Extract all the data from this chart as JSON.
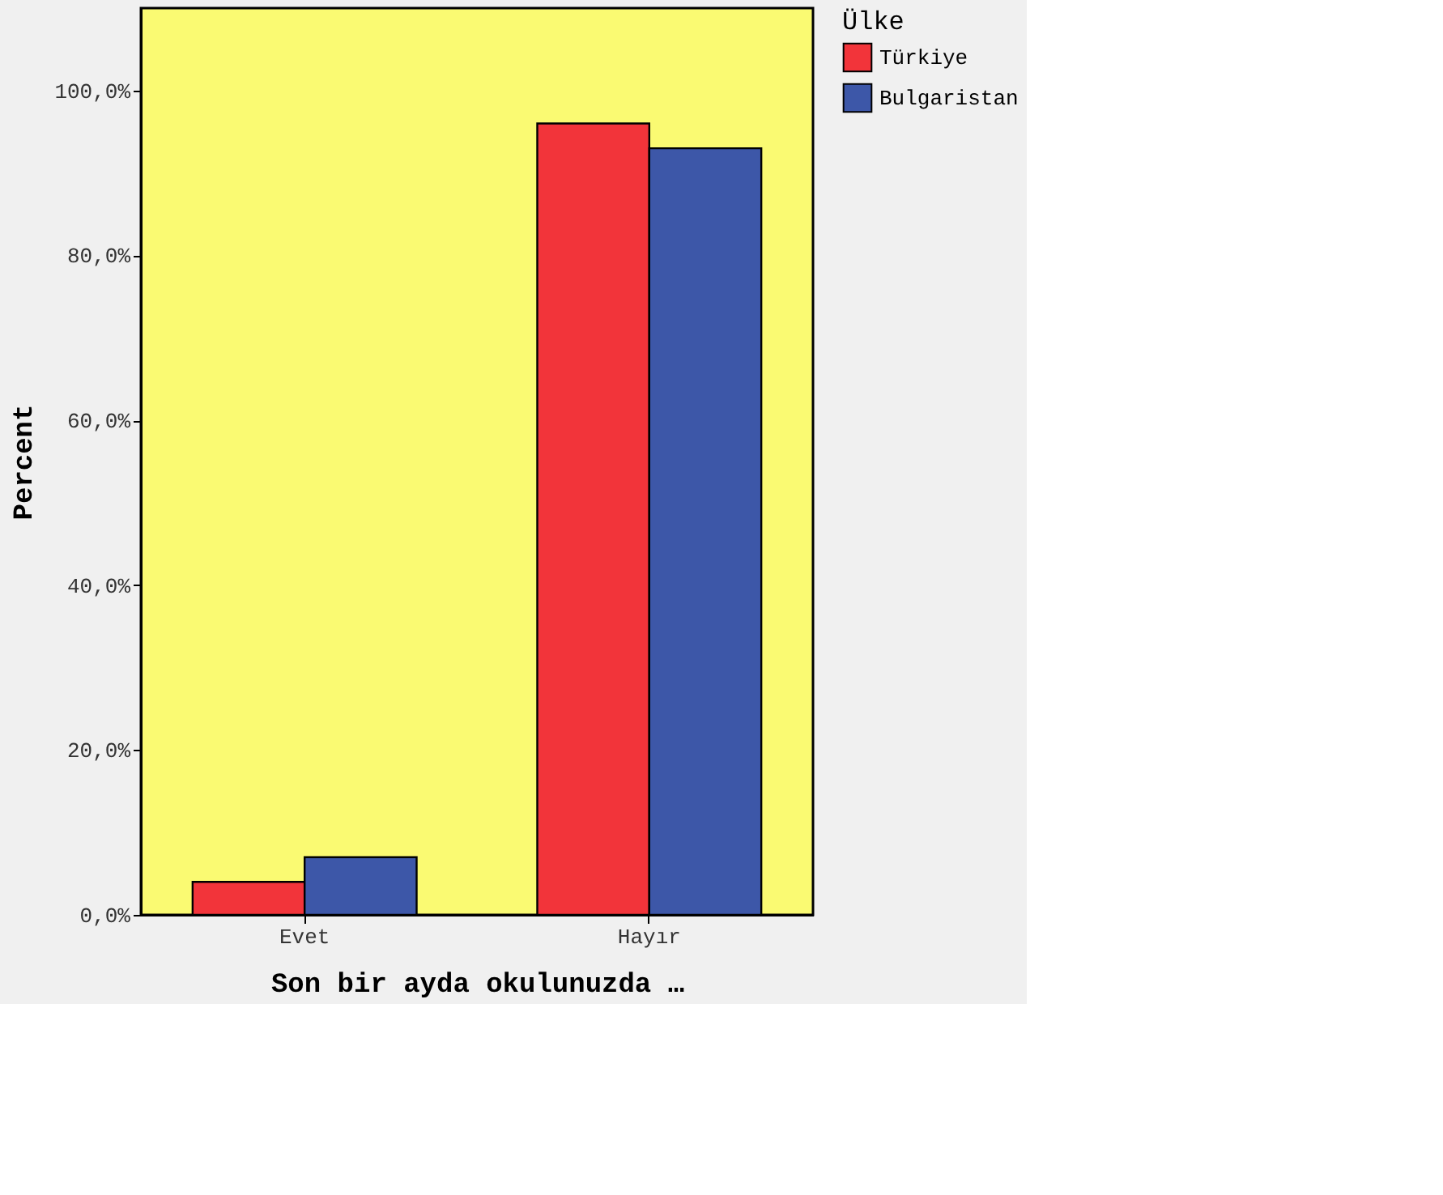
{
  "chart_data": {
    "type": "bar",
    "xlabel": "Son bir ayda okulunuzda …",
    "ylabel": "Percent",
    "legend_title": "Ülke",
    "legend": "top right",
    "grid": false,
    "categories": [
      "Evet",
      "Hayır"
    ],
    "series": [
      {
        "name": "Türkiye",
        "color": "#f2343a",
        "values": [
          4,
          96
        ]
      },
      {
        "name": "Bulgaristan",
        "color": "#3d57a8",
        "values": [
          7,
          93
        ]
      }
    ],
    "ylim": [
      0,
      110
    ],
    "yticks": [
      {
        "value": 0,
        "label": "0,0%"
      },
      {
        "value": 20,
        "label": "20,0%"
      },
      {
        "value": 40,
        "label": "40,0%"
      },
      {
        "value": 60,
        "label": "60,0%"
      },
      {
        "value": 80,
        "label": "80,0%"
      },
      {
        "value": 100,
        "label": "100,0%"
      }
    ]
  }
}
